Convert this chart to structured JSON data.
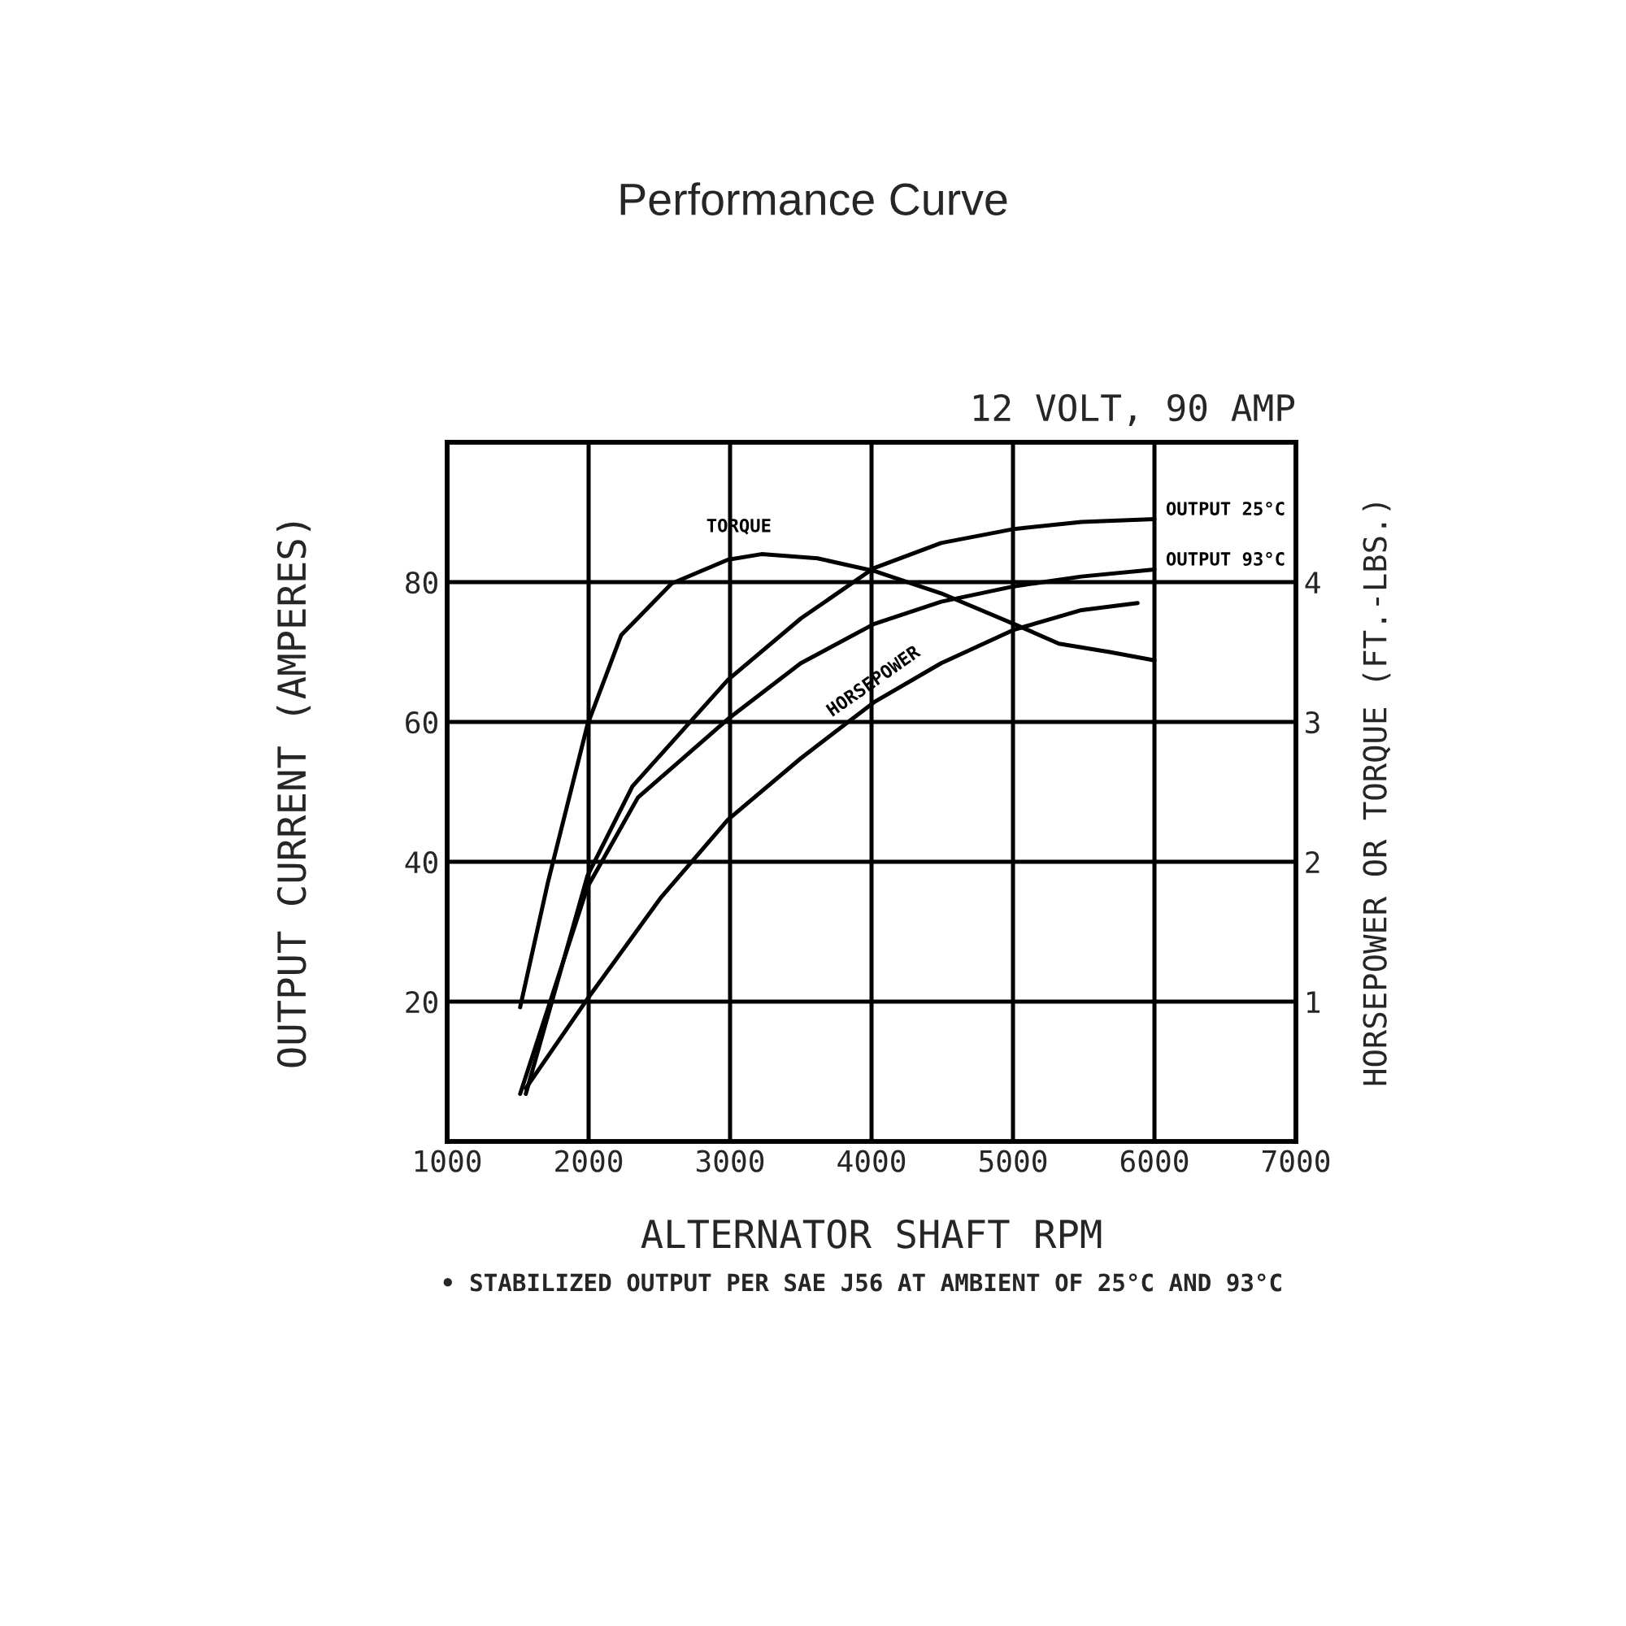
{
  "chart_data": {
    "type": "line",
    "title": "Performance Curve",
    "subtitle": "12 VOLT, 90 AMP",
    "xlabel": "ALTERNATOR SHAFT RPM",
    "ylabel": "OUTPUT CURRENT (AMPERES)",
    "y2label": "HORSEPOWER OR TORQUE (FT.-LBS.)",
    "xlim": [
      1000,
      7000
    ],
    "xticks": [
      1000,
      2000,
      3000,
      4000,
      5000,
      6000,
      7000
    ],
    "ylim": [
      0,
      100
    ],
    "yticks": [
      20,
      40,
      60,
      80
    ],
    "y2lim": [
      0,
      5
    ],
    "y2ticks": [
      1,
      2,
      3,
      4
    ],
    "grid": true,
    "marker": "none",
    "line_style": "solid",
    "series": [
      {
        "name": "OUTPUT 25°C",
        "color": "#000000",
        "x": [
          1556,
          1992,
          2310,
          2984,
          3500,
          4016,
          4492,
          5008,
          5484,
          6000
        ],
        "values": [
          6.8,
          38,
          50.8,
          66,
          74.8,
          82,
          85.6,
          87.6,
          88.6,
          89
        ]
      },
      {
        "name": "OUTPUT 93°C",
        "color": "#000000",
        "x": [
          1516,
          1992,
          2349,
          2984,
          3500,
          4016,
          4492,
          5008,
          5484,
          6000
        ],
        "values": [
          6.8,
          36.4,
          49.2,
          60.4,
          68.4,
          74,
          77.2,
          79.4,
          80.8,
          81.8
        ]
      },
      {
        "name": "TORQUE",
        "color": "#000000",
        "axis": "y2",
        "x": [
          1516,
          1714,
          1992,
          2230,
          2587,
          2984,
          3222,
          3619,
          4016,
          4492,
          5008,
          5325,
          5683,
          6000
        ],
        "values": [
          0.96,
          1.86,
          2.98,
          3.62,
          3.99,
          4.16,
          4.2,
          4.17,
          4.08,
          3.92,
          3.7,
          3.56,
          3.5,
          3.44
        ]
      },
      {
        "name": "HORSEPOWER",
        "color": "#000000",
        "axis": "y2",
        "x": [
          1556,
          1992,
          2508,
          2984,
          3500,
          4016,
          4492,
          5008,
          5484,
          5881
        ],
        "values": [
          0.38,
          1.02,
          1.74,
          2.3,
          2.74,
          3.14,
          3.42,
          3.66,
          3.8,
          3.85
        ]
      }
    ],
    "annotations": [
      "• STABILIZED OUTPUT PER SAE J56 AT AMBIENT OF 25°C AND 93°C"
    ]
  }
}
